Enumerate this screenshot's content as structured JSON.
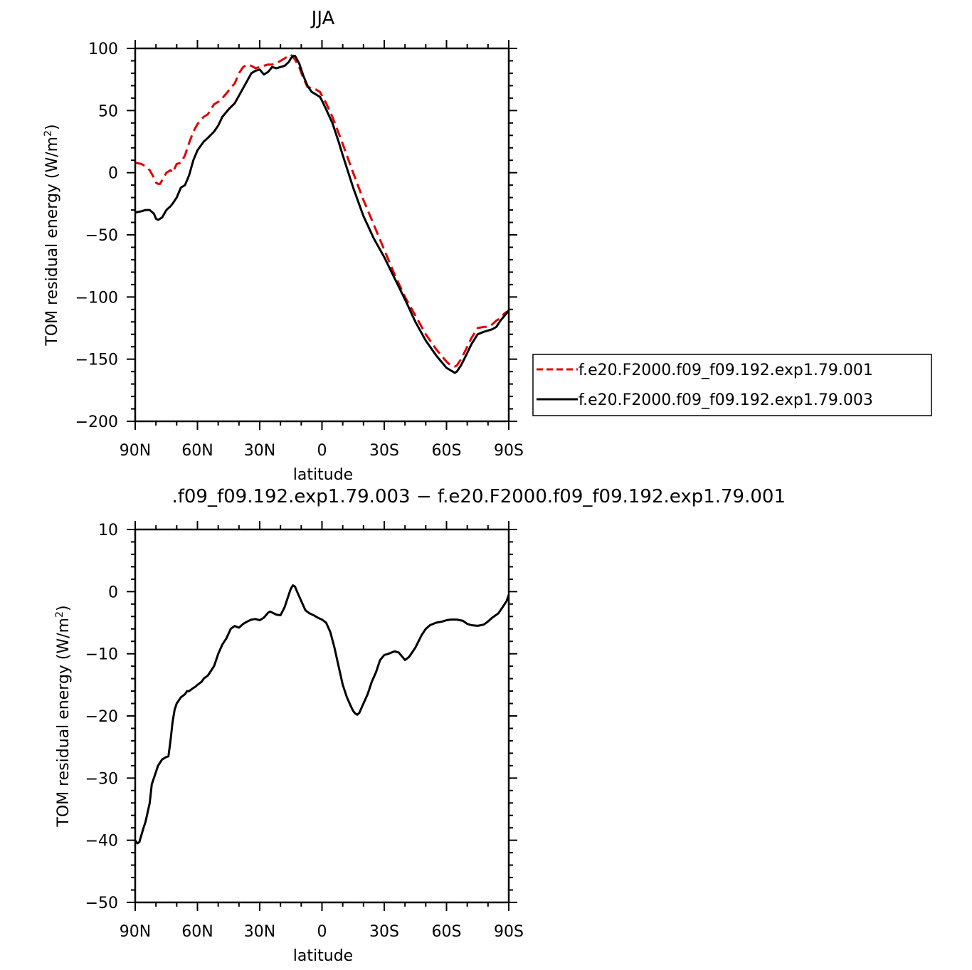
{
  "chart_data": [
    {
      "type": "line",
      "title": "JJA",
      "xlabel": "latitude",
      "ylabel_main": "TOM residual energy (W/m",
      "ylabel_sup": "2",
      "ylabel_tail": ")",
      "xlim": [
        90,
        -90
      ],
      "ylim": [
        -200,
        100
      ],
      "x_ticks": [
        90,
        60,
        30,
        0,
        -30,
        -60,
        -90
      ],
      "x_tick_labels": [
        "90N",
        "60N",
        "30N",
        "0",
        "30S",
        "60S",
        "90S"
      ],
      "y_ticks": [
        100,
        50,
        0,
        -50,
        -100,
        -150,
        -200
      ],
      "y_tick_labels": [
        "100",
        "50",
        "0",
        "−50",
        "−100",
        "−150",
        "−200"
      ],
      "grid": false,
      "legend_position": "right",
      "series": [
        {
          "name": "f.e20.F2000.f09_f09.192.exp1.79.001",
          "color": "#e00000",
          "dash": "dashed",
          "x": [
            90,
            87,
            85,
            83,
            81,
            80,
            79,
            78,
            77,
            75,
            73,
            72,
            70,
            68,
            66,
            64,
            62,
            60,
            57,
            55,
            52,
            50,
            48,
            45,
            42,
            40,
            38,
            36,
            34,
            32,
            30,
            28,
            26,
            24,
            22,
            20,
            18,
            16,
            15,
            14,
            13,
            11,
            9,
            7,
            5,
            3,
            2,
            1,
            0,
            -2,
            -5,
            -8,
            -10,
            -15,
            -20,
            -25,
            -30,
            -35,
            -40,
            -45,
            -50,
            -55,
            -60,
            -62,
            -64,
            -65,
            -67,
            -70,
            -72,
            -75,
            -78,
            -80,
            -82,
            -84,
            -86,
            -88,
            -90
          ],
          "y": [
            8,
            7,
            5,
            2,
            -4,
            -8,
            -9,
            -9,
            -6,
            0,
            2,
            0,
            7,
            8,
            14,
            24,
            33,
            39,
            45,
            47,
            55,
            57,
            60,
            66,
            72,
            80,
            85,
            87,
            86,
            84,
            85,
            86,
            87,
            87,
            88,
            90,
            92,
            94,
            95,
            93,
            91,
            85,
            76,
            69,
            68,
            67,
            66,
            65,
            62,
            56,
            45,
            32,
            23,
            0,
            -22,
            -42,
            -62,
            -82,
            -100,
            -115,
            -130,
            -142,
            -152,
            -155,
            -156,
            -155,
            -150,
            -140,
            -133,
            -125,
            -124,
            -124,
            -122,
            -119,
            -117,
            -113,
            -111
          ]
        },
        {
          "name": "f.e20.F2000.f09_f09.192.exp1.79.003",
          "color": "#000000",
          "dash": "solid",
          "x": [
            90,
            87,
            85,
            83,
            81,
            80,
            79,
            78,
            77,
            75,
            73,
            72,
            70,
            68,
            66,
            64,
            62,
            60,
            57,
            55,
            52,
            50,
            48,
            45,
            42,
            40,
            38,
            36,
            34,
            32,
            30,
            28,
            26,
            24,
            22,
            20,
            18,
            16,
            15,
            14,
            13,
            11,
            9,
            7,
            5,
            3,
            2,
            1,
            0,
            -2,
            -5,
            -8,
            -10,
            -15,
            -20,
            -25,
            -30,
            -35,
            -40,
            -45,
            -50,
            -55,
            -60,
            -62,
            -64,
            -65,
            -67,
            -70,
            -72,
            -75,
            -78,
            -80,
            -82,
            -84,
            -86,
            -88,
            -90
          ],
          "y": [
            -32,
            -31,
            -30,
            -30,
            -33,
            -37,
            -38,
            -37,
            -36,
            -30,
            -27,
            -25,
            -20,
            -12,
            -10,
            -2,
            10,
            18,
            25,
            28,
            33,
            38,
            45,
            51,
            56,
            62,
            68,
            74,
            80,
            82,
            83,
            79,
            81,
            85,
            84,
            85,
            86,
            89,
            92,
            94,
            94,
            88,
            78,
            70,
            65,
            63,
            62,
            61,
            58,
            51,
            40,
            25,
            14,
            -12,
            -35,
            -53,
            -68,
            -85,
            -102,
            -120,
            -135,
            -147,
            -157,
            -159,
            -161,
            -160,
            -155,
            -145,
            -138,
            -130,
            -128,
            -127,
            -126,
            -124,
            -119,
            -115,
            -111
          ]
        }
      ]
    },
    {
      "type": "line",
      "title": ".f09_f09.192.exp1.79.003 − f.e20.F2000.f09_f09.192.exp1.79.001",
      "xlabel": "latitude",
      "ylabel_main": "TOM residual energy (W/m",
      "ylabel_sup": "2",
      "ylabel_tail": ")",
      "xlim": [
        90,
        -90
      ],
      "ylim": [
        -50,
        10
      ],
      "x_ticks": [
        90,
        60,
        30,
        0,
        -30,
        -60,
        -90
      ],
      "x_tick_labels": [
        "90N",
        "60N",
        "30N",
        "0",
        "30S",
        "60S",
        "90S"
      ],
      "y_ticks": [
        10,
        0,
        -10,
        -20,
        -30,
        -40,
        -50
      ],
      "y_tick_labels": [
        "10",
        "0",
        "−10",
        "−20",
        "−30",
        "−40",
        "−50"
      ],
      "grid": false,
      "series": [
        {
          "color": "#000000",
          "dash": "solid",
          "x": [
            90,
            89,
            88,
            86,
            85,
            83,
            82,
            80,
            79,
            78,
            77,
            76,
            75,
            74,
            73,
            72,
            71,
            70,
            69,
            68,
            66,
            65,
            64,
            62,
            61,
            60,
            58,
            57,
            55,
            54,
            52,
            51,
            50,
            48,
            46,
            44,
            42,
            41,
            40,
            38,
            36,
            34,
            32,
            30,
            28,
            26,
            25,
            22,
            20,
            18,
            17,
            16,
            15,
            14,
            13,
            12,
            10,
            8,
            6,
            4,
            2,
            0,
            -2,
            -4,
            -6,
            -8,
            -10,
            -12,
            -14,
            -15,
            -16,
            -17,
            -18,
            -20,
            -22,
            -24,
            -26,
            -28,
            -30,
            -32,
            -35,
            -37,
            -38,
            -40,
            -42,
            -45,
            -48,
            -50,
            -52,
            -55,
            -58,
            -60,
            -62,
            -65,
            -68,
            -70,
            -72,
            -75,
            -78,
            -80,
            -82,
            -85,
            -87,
            -89,
            -90
          ],
          "y": [
            -40,
            -40.5,
            -40.3,
            -38,
            -37,
            -34,
            -31,
            -29,
            -28,
            -27.5,
            -27,
            -26.8,
            -26.6,
            -26.5,
            -24,
            -21,
            -19,
            -18,
            -17.5,
            -17,
            -16.5,
            -16,
            -16,
            -15.5,
            -15.3,
            -15,
            -14.5,
            -14,
            -13.5,
            -13,
            -12,
            -11,
            -10,
            -8.5,
            -7.5,
            -6,
            -5.5,
            -5.7,
            -5.8,
            -5.2,
            -4.8,
            -4.5,
            -4.4,
            -4.6,
            -4.2,
            -3.4,
            -3.2,
            -3.7,
            -3.8,
            -2.5,
            -1.5,
            -0.5,
            0.5,
            1,
            0.8,
            0,
            -1.5,
            -3,
            -3.5,
            -3.8,
            -4.2,
            -4.5,
            -5,
            -6.5,
            -9,
            -12,
            -15,
            -17,
            -18.5,
            -19.2,
            -19.6,
            -19.8,
            -19.5,
            -18,
            -16.5,
            -14.5,
            -13,
            -11,
            -10.2,
            -10,
            -9.6,
            -9.8,
            -10.2,
            -11,
            -10.5,
            -9,
            -7,
            -6,
            -5.4,
            -5,
            -4.8,
            -4.6,
            -4.5,
            -4.5,
            -4.7,
            -5.2,
            -5.4,
            -5.5,
            -5.3,
            -4.8,
            -4.2,
            -3.5,
            -2.5,
            -1.5,
            -0.5
          ]
        }
      ]
    }
  ]
}
